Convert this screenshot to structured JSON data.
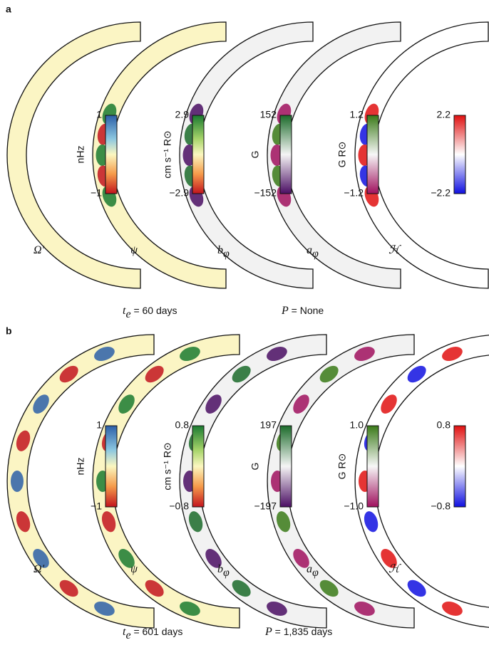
{
  "panels": [
    {
      "label": "a",
      "colorbars": [
        {
          "top": "1",
          "bottom": "−1",
          "unit": "nHz"
        },
        {
          "top": "2.9",
          "bottom": "−2.9",
          "unit": "cm s⁻¹ R⊙"
        },
        {
          "top": "152",
          "bottom": "−152",
          "unit": "G"
        },
        {
          "top": "1.2",
          "bottom": "−1.2",
          "unit": "G R⊙"
        },
        {
          "top": "2.2",
          "bottom": "−2.2",
          "unit": ""
        }
      ],
      "fields": [
        {
          "symbol": "Ω′"
        },
        {
          "symbol": "ψ"
        },
        {
          "symbol": "b",
          "sub": "φ"
        },
        {
          "symbol": "a",
          "sub": "φ"
        },
        {
          "symbol": "ℋ"
        }
      ],
      "captions": [
        {
          "symbol": "t",
          "sub": "e",
          "text": " = 60 days"
        },
        {
          "symbol": "P",
          "text": " = None"
        }
      ]
    },
    {
      "label": "b",
      "colorbars": [
        {
          "top": "1",
          "bottom": "−1",
          "unit": "nHz"
        },
        {
          "top": "0.8",
          "bottom": "−0.8",
          "unit": "cm s⁻¹ R⊙"
        },
        {
          "top": "197",
          "bottom": "−197",
          "unit": "G"
        },
        {
          "top": "1.0",
          "bottom": "−1.0",
          "unit": "G R⊙"
        },
        {
          "top": "0.8",
          "bottom": "−0.8",
          "unit": ""
        }
      ],
      "fields": [
        {
          "symbol": "Ω′"
        },
        {
          "symbol": "ψ"
        },
        {
          "symbol": "b",
          "sub": "φ"
        },
        {
          "symbol": "a",
          "sub": "φ"
        },
        {
          "symbol": "ℋ"
        }
      ],
      "captions": [
        {
          "symbol": "t",
          "sub": "e",
          "text": " = 601 days"
        },
        {
          "symbol": "P",
          "text": " = 1,835 days"
        }
      ]
    }
  ]
}
